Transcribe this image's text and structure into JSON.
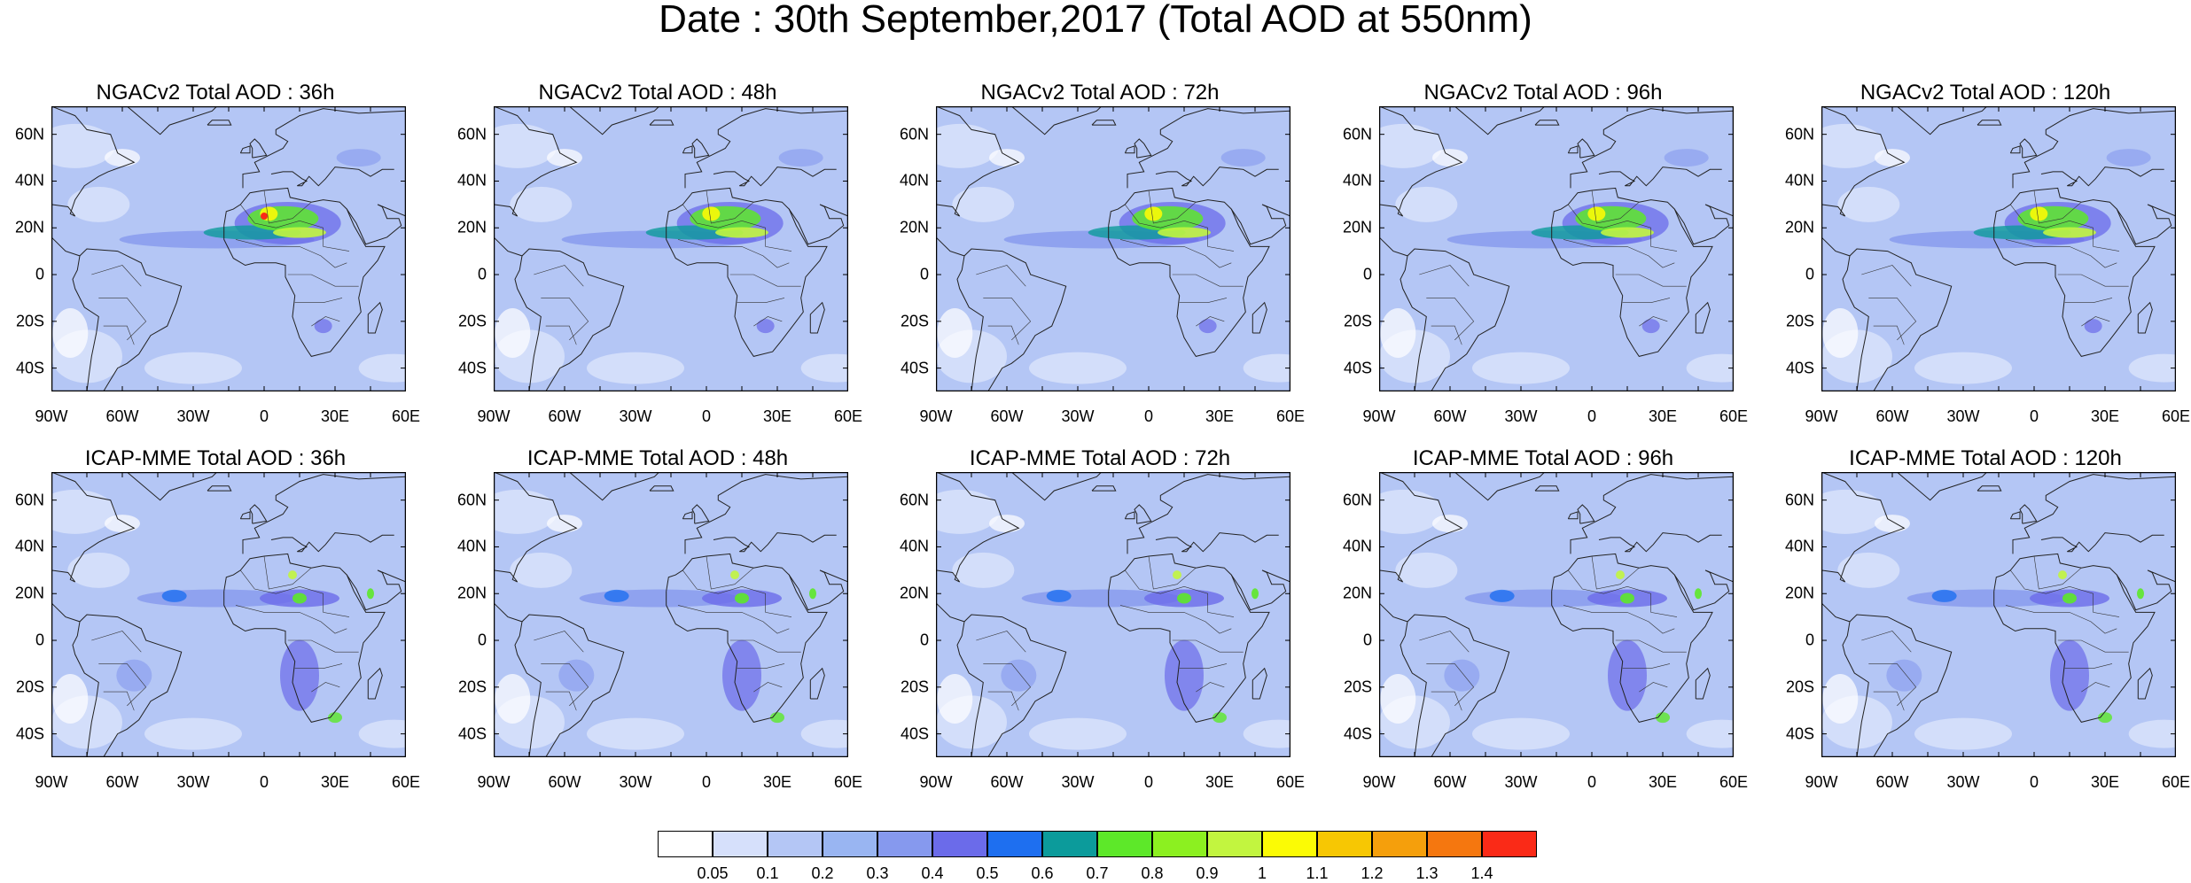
{
  "title": "Date : 30th September,2017 (Total AOD at 550nm)",
  "rows": [
    {
      "model": "NGACv2",
      "panels": [
        {
          "title": "NGACv2 Total AOD : 36h",
          "hotspot": "sahara-ngac"
        },
        {
          "title": "NGACv2 Total AOD : 48h",
          "hotspot": "sahara-ngac"
        },
        {
          "title": "NGACv2 Total AOD : 72h",
          "hotspot": "sahara-ngac"
        },
        {
          "title": "NGACv2 Total AOD : 96h",
          "hotspot": "sahara-ngac"
        },
        {
          "title": "NGACv2 Total AOD : 120h",
          "hotspot": "sahara-ngac"
        }
      ]
    },
    {
      "model": "ICAP-MME",
      "panels": [
        {
          "title": "ICAP-MME Total AOD : 36h",
          "hotspot": "icap"
        },
        {
          "title": "ICAP-MME Total AOD : 48h",
          "hotspot": "icap"
        },
        {
          "title": "ICAP-MME Total AOD : 72h",
          "hotspot": "icap"
        },
        {
          "title": "ICAP-MME Total AOD : 96h",
          "hotspot": "icap"
        },
        {
          "title": "ICAP-MME Total AOD : 120h",
          "hotspot": "icap"
        }
      ]
    }
  ],
  "lat_labels": [
    "60N",
    "40N",
    "20N",
    "0",
    "20S",
    "40S"
  ],
  "lon_labels": [
    "90W",
    "60W",
    "30W",
    "0",
    "30E",
    "60E"
  ],
  "colorbar": {
    "colors": [
      "#ffffff",
      "#d6e0fb",
      "#b4c6f5",
      "#99b5f2",
      "#8699ee",
      "#6b6bea",
      "#1e6ff0",
      "#0c9b9b",
      "#5de829",
      "#8cf020",
      "#c2f53f",
      "#fbfb05",
      "#f7c703",
      "#f59f0c",
      "#f5770f",
      "#fa2a17"
    ],
    "labels": [
      "0.05",
      "0.1",
      "0.2",
      "0.3",
      "0.4",
      "0.5",
      "0.6",
      "0.7",
      "0.8",
      "0.9",
      "1",
      "1.1",
      "1.2",
      "1.3",
      "1.4"
    ]
  }
}
